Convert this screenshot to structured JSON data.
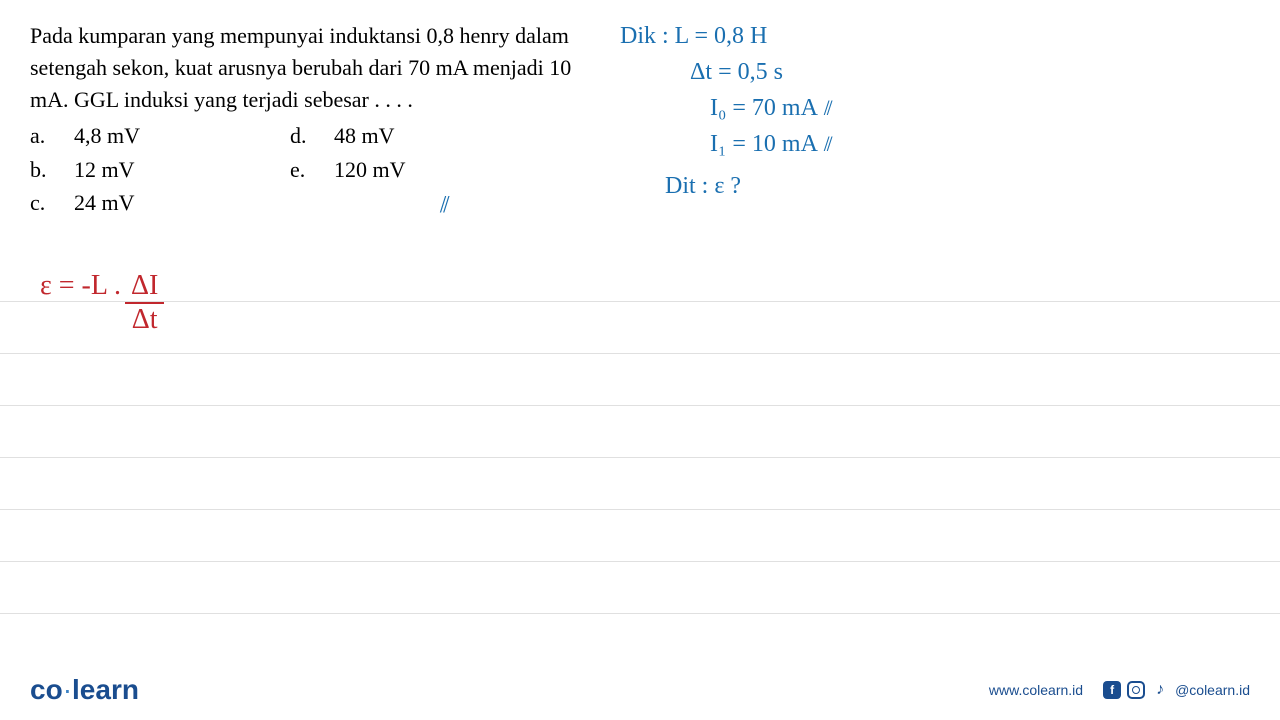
{
  "question": {
    "text": "Pada kumparan yang mempunyai induktansi 0,8 henry dalam setengah sekon, kuat arusnya berubah dari 70 mA menjadi 10 mA. GGL induksi yang terjadi sebesar . . . .",
    "options_left": [
      {
        "letter": "a.",
        "value": "4,8 mV"
      },
      {
        "letter": "b.",
        "value": "12 mV"
      },
      {
        "letter": "c.",
        "value": "24 mV"
      }
    ],
    "options_right": [
      {
        "letter": "d.",
        "value": "48 mV"
      },
      {
        "letter": "e.",
        "value": "120 mV"
      }
    ]
  },
  "given": {
    "header": "Dik :",
    "l": "L = 0,8 H",
    "dt": "Δt = 0,5 s",
    "i0": "I₀ = 70 mA",
    "i1": "I₁ = 10 mA",
    "asked": "Dit :  ε ?",
    "tick": "⫽"
  },
  "formula": {
    "lhs": "ε = -L .",
    "num": "ΔI",
    "den": "Δt"
  },
  "answer_tick": "⫽",
  "footer": {
    "logo_co": "co",
    "logo_learn": "learn",
    "url": "www.colearn.id",
    "handle": "@colearn.id"
  },
  "colors": {
    "text": "#000000",
    "blue_ink": "#1a6fb0",
    "red_ink": "#c1272d",
    "brand": "#1a4d8f",
    "rule": "#e0e0e0",
    "bg": "#ffffff"
  }
}
